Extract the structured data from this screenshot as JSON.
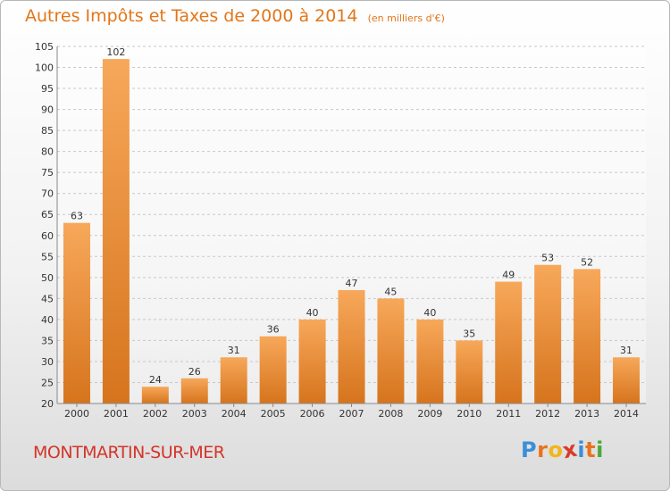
{
  "header": {
    "title": "Autres Impôts et Taxes de 2000 à 2014",
    "unit": "(en milliers d'€)"
  },
  "footer": {
    "commune": "MONTMARTIN-SUR-MER",
    "logo_text": "Proxiti",
    "logo_colors": [
      "#3a8fd8",
      "#e8731c",
      "#f2b51a",
      "#d93a2a",
      "#3a8fd8",
      "#e8731c",
      "#4aa83a"
    ]
  },
  "colors": {
    "bar_light": "#f7a85a",
    "bar_dark": "#d6741d",
    "title": "#e2761a",
    "commune": "#d3352a"
  },
  "chart_data": {
    "type": "bar",
    "categories": [
      "2000",
      "2001",
      "2002",
      "2003",
      "2004",
      "2005",
      "2006",
      "2007",
      "2008",
      "2009",
      "2010",
      "2011",
      "2012",
      "2013",
      "2014"
    ],
    "values": [
      63,
      102,
      24,
      26,
      31,
      36,
      40,
      47,
      45,
      40,
      35,
      49,
      53,
      52,
      31
    ],
    "ylim": [
      20,
      105
    ],
    "yticks": [
      20,
      25,
      30,
      35,
      40,
      45,
      50,
      55,
      60,
      65,
      70,
      75,
      80,
      85,
      90,
      95,
      100,
      105
    ],
    "grid": true
  }
}
